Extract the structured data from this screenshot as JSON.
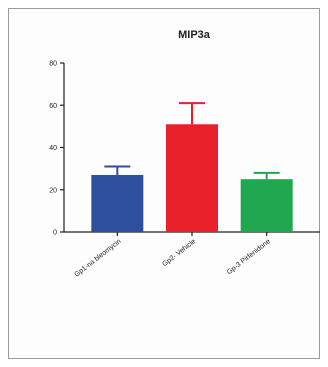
{
  "chart_data": {
    "type": "bar",
    "title": "MIP3a",
    "xlabel": "",
    "ylabel": "",
    "ylim": [
      0,
      80
    ],
    "yticks": [
      0,
      20,
      40,
      60,
      80
    ],
    "grid": false,
    "categories": [
      "Gp1-na bleomycin",
      "Gp2- Vehicle",
      "Gp-3 Pirfenidone"
    ],
    "values": [
      27,
      51,
      25
    ],
    "errors": [
      4,
      10,
      3
    ],
    "colors": [
      "#2d4f9e",
      "#e8202a",
      "#1fa84f"
    ]
  }
}
